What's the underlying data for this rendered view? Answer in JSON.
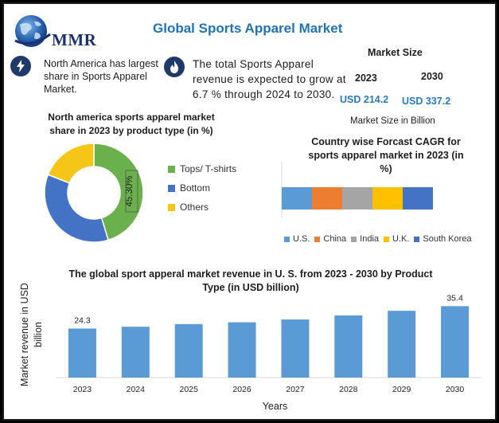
{
  "header": {
    "title": "Global Sports Apparel Market",
    "logo_text": "MMR"
  },
  "info": {
    "item1": {
      "icon": "lightning-icon",
      "line1": "North America has largest",
      "line2": "share in Sports Apparel",
      "line3": "Market."
    },
    "item2": {
      "icon": "flame-icon",
      "line1": "The total Sports Apparel",
      "line2": "revenue is expected to grow at",
      "line3": "6.7 % through 2024 to 2030."
    }
  },
  "market_size": {
    "heading": "Market Size",
    "year_start": "2023",
    "year_end": "2030",
    "value_start": "USD 214.2",
    "value_end": "USD 337.2",
    "footer": "Market Size in Billion"
  },
  "colors": {
    "title_blue": "#2273b6",
    "value_blue": "#2a7bbd",
    "donut_green": "#6ab04c",
    "donut_blue": "#4472c4",
    "donut_yellow": "#f5c518",
    "bar_blue": "#5b9bd5",
    "us": "#5b9bd5",
    "china": "#ed7d31",
    "india": "#a5a5a5",
    "uk": "#ffc000",
    "south_korea": "#4472c4"
  },
  "chart_data": [
    {
      "type": "pie",
      "title": "North america sports apparel market share in 2023 by product type (in %)",
      "title_line1": "North america sports apparel market",
      "title_line2": "share in 2023 by product type (in %)",
      "labels": [
        "Tops/ T-shirts",
        "Bottom",
        "Others"
      ],
      "values": [
        45.3,
        35.7,
        19.0
      ],
      "data_label": "45.30%",
      "legend_position": "right"
    },
    {
      "type": "bar",
      "orientation": "horizontal-stacked",
      "title": "Country wise Forcast CAGR for sports apparel market in 2023 (in %)",
      "title_line1": "Country wise Forcast CAGR for",
      "title_line2": "sports apparel market in 2023 (in",
      "title_line3": "%)",
      "series": [
        {
          "name": "U.S.",
          "values": [
            20
          ]
        },
        {
          "name": "China",
          "values": [
            20
          ]
        },
        {
          "name": "India",
          "values": [
            20
          ]
        },
        {
          "name": "U.K.",
          "values": [
            20
          ]
        },
        {
          "name": "South Korea",
          "values": [
            20
          ]
        }
      ],
      "legend_position": "bottom"
    },
    {
      "type": "bar",
      "title": "The global sport apperal market revenue in U. S. from 2023 - 2030  by Product Type (in USD billion)",
      "title_line1": "The global sport apperal market revenue in U. S. from 2023 - 2030  by Product",
      "title_line2": "Type (in USD billion)",
      "categories": [
        "2023",
        "2024",
        "2025",
        "2026",
        "2027",
        "2028",
        "2029",
        "2030"
      ],
      "values": [
        24.3,
        25.2,
        26.5,
        27.4,
        28.8,
        30.8,
        33.1,
        35.4
      ],
      "data_labels": {
        "2023": "24.3",
        "2030": "35.4"
      },
      "xlabel": "Years",
      "ylabel": "Market revenue in USD billion",
      "ylabel_line1": "Market revenue in USD",
      "ylabel_line2": "billion",
      "ylim": [
        0,
        45
      ],
      "grid": false
    }
  ]
}
